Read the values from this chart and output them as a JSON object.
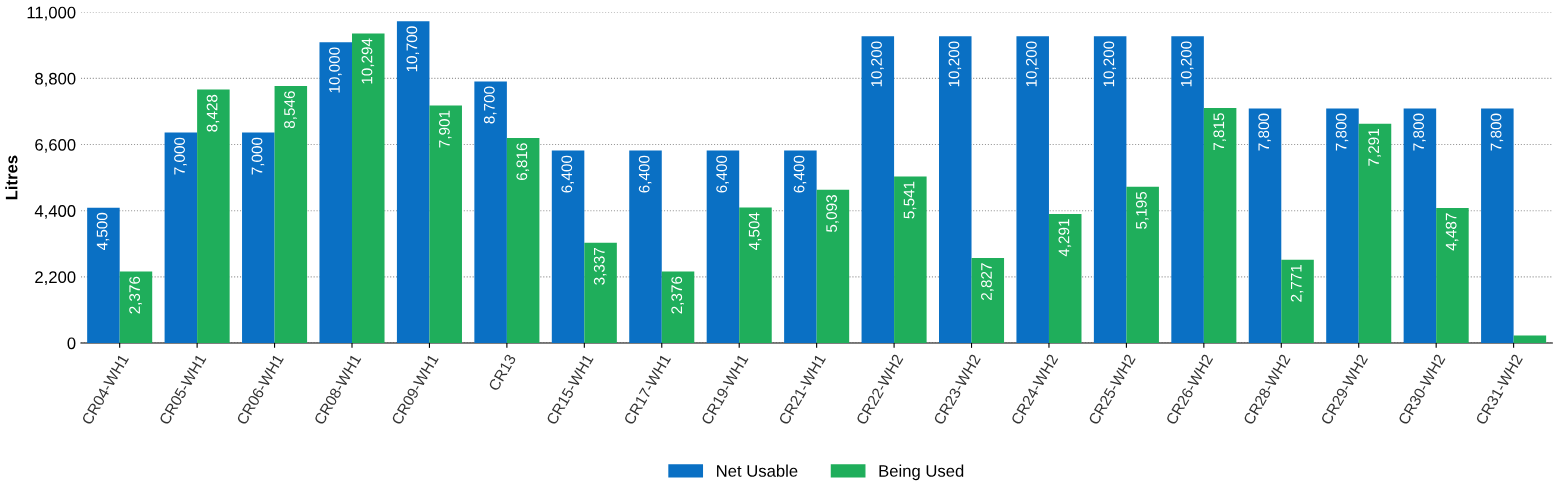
{
  "chart_data": {
    "type": "bar",
    "ylabel": "Litres",
    "categories": [
      "CR04-WH1",
      "CR05-WH1",
      "CR06-WH1",
      "CR08-WH1",
      "CR09-WH1",
      "CR13",
      "CR15-WH1",
      "CR17-WH1",
      "CR19-WH1",
      "CR21-WH1",
      "CR22-WH2",
      "CR23-WH2",
      "CR24-WH2",
      "CR25-WH2",
      "CR26-WH2",
      "CR28-WH2",
      "CR29-WH2",
      "CR30-WH2",
      "CR31-WH2"
    ],
    "series": [
      {
        "name": "Net Usable",
        "color": "#0a70c4",
        "values": [
          4500,
          7000,
          7000,
          10000,
          10700,
          8700,
          6400,
          6400,
          6400,
          6400,
          10200,
          10200,
          10200,
          10200,
          10200,
          7800,
          7800,
          7800,
          7800
        ],
        "value_labels": [
          "4,500",
          "7,000",
          "7,000",
          "10,000",
          "10,700",
          "8,700",
          "6,400",
          "6,400",
          "6,400",
          "6,400",
          "10,200",
          "10,200",
          "10,200",
          "10,200",
          "10,200",
          "7,800",
          "7,800",
          "7,800",
          "7,800"
        ]
      },
      {
        "name": "Being Used",
        "color": "#1fae5b",
        "values": [
          2376,
          8428,
          8546,
          10294,
          7901,
          6816,
          3337,
          2376,
          4504,
          5093,
          5541,
          2827,
          4291,
          5195,
          7815,
          2771,
          7291,
          4487,
          250
        ],
        "value_labels": [
          "2,376",
          "8,428",
          "8,546",
          "10,294",
          "7,901",
          "6,816",
          "3,337",
          "2,376",
          "4,504",
          "5,093",
          "5,541",
          "2,827",
          "4,291",
          "5,195",
          "7,815",
          "2,771",
          "7,291",
          "4,487",
          null
        ]
      }
    ],
    "ylim": [
      0,
      11000
    ],
    "yticks": [
      {
        "value": 0,
        "label": "0"
      },
      {
        "value": 2200,
        "label": "2,200"
      },
      {
        "value": 4400,
        "label": "4,400"
      },
      {
        "value": 6600,
        "label": "6,600"
      },
      {
        "value": 8800,
        "label": "8,800"
      },
      {
        "value": 11000,
        "label": "11,000"
      }
    ],
    "grid": "y",
    "legend": "bottom"
  }
}
